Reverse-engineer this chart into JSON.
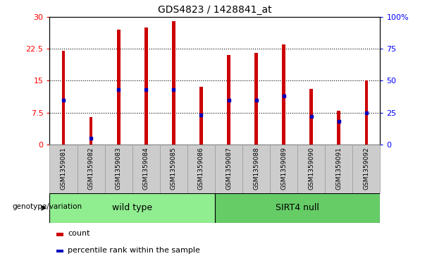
{
  "title": "GDS4823 / 1428841_at",
  "samples": [
    "GSM1359081",
    "GSM1359082",
    "GSM1359083",
    "GSM1359084",
    "GSM1359085",
    "GSM1359086",
    "GSM1359087",
    "GSM1359088",
    "GSM1359089",
    "GSM1359090",
    "GSM1359091",
    "GSM1359092"
  ],
  "counts": [
    22.0,
    6.5,
    27.0,
    27.5,
    29.0,
    13.5,
    21.0,
    21.5,
    23.5,
    13.0,
    8.0,
    15.0
  ],
  "percentile_ranks": [
    35,
    5,
    43,
    43,
    43,
    23,
    35,
    35,
    38,
    22,
    18,
    25
  ],
  "bar_color": "#CC0000",
  "percentile_color": "#0000BB",
  "left_ylim": [
    0,
    30
  ],
  "right_ylim": [
    0,
    100
  ],
  "left_yticks": [
    0,
    7.5,
    15,
    22.5,
    30
  ],
  "left_yticklabels": [
    "0",
    "7.5",
    "15",
    "22.5",
    "30"
  ],
  "right_yticks": [
    0,
    25,
    50,
    75,
    100
  ],
  "right_yticklabels": [
    "0",
    "25",
    "50",
    "75",
    "100%"
  ],
  "cell_bg": "#CCCCCC",
  "cell_border": "#999999",
  "green_light": "#90EE90",
  "green_dark": "#66CC66",
  "genotype_label": "genotype/variation",
  "legend_count": "count",
  "legend_percentile": "percentile rank within the sample",
  "wild_type_label": "wild type",
  "sirt4_label": "SIRT4 null",
  "n_wild": 6,
  "n_sirt4": 6
}
